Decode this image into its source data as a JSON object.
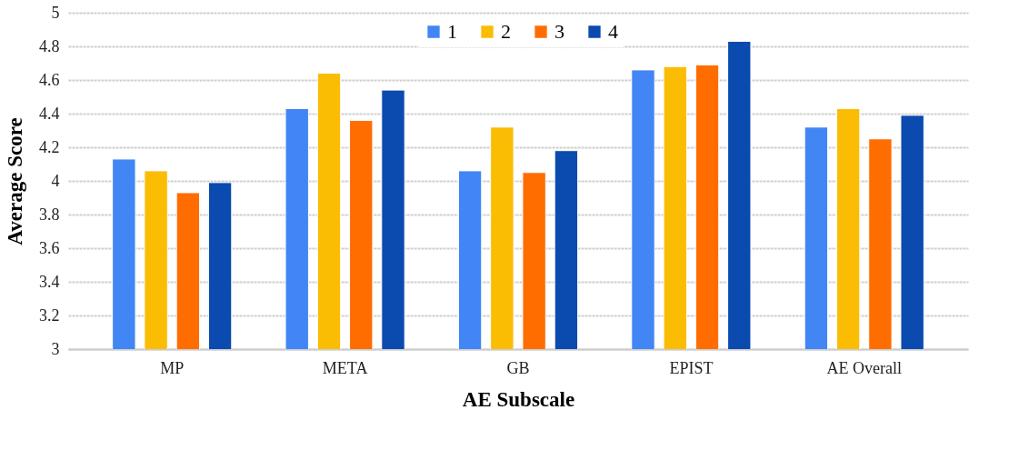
{
  "chart_data": {
    "type": "bar",
    "xlabel": "AE Subscale",
    "ylabel": "Average Score",
    "categories": [
      "MP",
      "META",
      "GB",
      "EPIST",
      "AE Overall"
    ],
    "series": [
      {
        "name": "1",
        "color": "#4285f4",
        "values": [
          4.13,
          4.43,
          4.06,
          4.66,
          4.32
        ]
      },
      {
        "name": "2",
        "color": "#fbbc04",
        "values": [
          4.06,
          4.64,
          4.32,
          4.68,
          4.43
        ]
      },
      {
        "name": "3",
        "color": "#ff6d01",
        "values": [
          3.93,
          4.36,
          4.05,
          4.69,
          4.25
        ]
      },
      {
        "name": "4",
        "color": "#0b4aaf",
        "values": [
          3.99,
          4.54,
          4.18,
          4.83,
          4.39
        ]
      }
    ],
    "ylim": [
      3,
      5
    ],
    "yticks": [
      3,
      3.2,
      3.4,
      3.6,
      3.8,
      4,
      4.2,
      4.4,
      4.6,
      4.8,
      5
    ],
    "grid": "y",
    "legend": "top"
  }
}
